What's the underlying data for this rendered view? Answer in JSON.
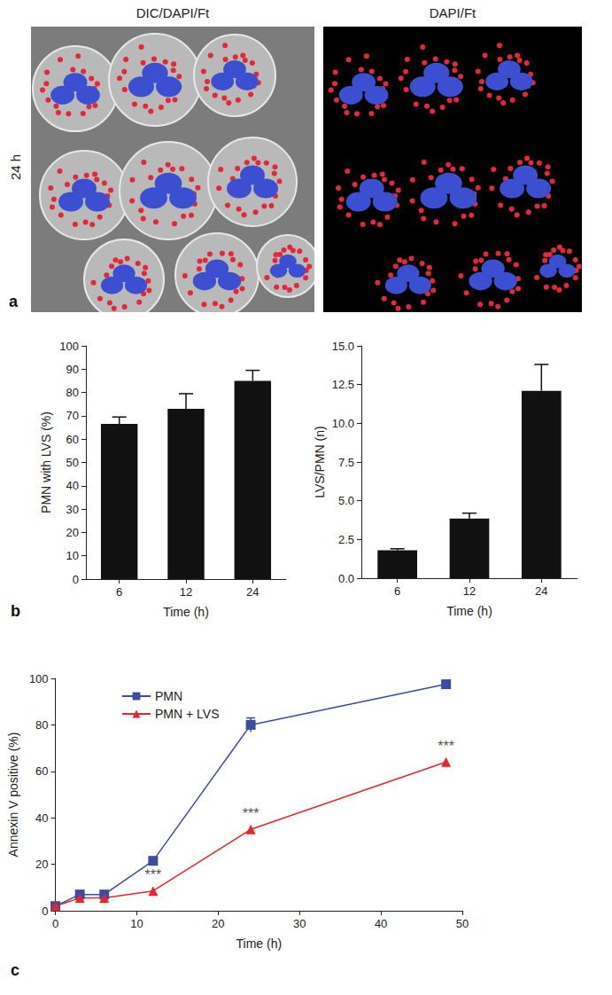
{
  "image_panel": {
    "annotations": [
      "a"
    ],
    "row_label": "24 h",
    "panels": [
      {
        "title": "DIC/DAPI/Ft"
      },
      {
        "title": "DAPI/Ft"
      }
    ]
  },
  "chart_data": [
    {
      "type": "bar",
      "annotations": [
        "b"
      ],
      "categories": [
        "6",
        "12",
        "24"
      ],
      "values": [
        66.5,
        73,
        85
      ],
      "errors": [
        3,
        6.5,
        4.5
      ],
      "color": "#111111",
      "xlabel": "Time (h)",
      "ylabel": "PMN with LVS (%)",
      "ylim": [
        0,
        100
      ],
      "yticks": [
        0,
        10,
        20,
        30,
        40,
        50,
        60,
        70,
        80,
        90,
        100
      ],
      "grid": false
    },
    {
      "type": "bar",
      "categories": [
        "6",
        "12",
        "24"
      ],
      "values": [
        1.8,
        3.85,
        12.1
      ],
      "errors": [
        0.1,
        0.35,
        1.7
      ],
      "color": "#111111",
      "xlabel": "Time (h)",
      "ylabel": "LVS/PMN (n)",
      "ylim": [
        0,
        15
      ],
      "yticks": [
        {
          "value": 0,
          "label": "0.0"
        },
        {
          "value": 2.5,
          "label": "2.5"
        },
        {
          "value": 5,
          "label": "5.0"
        },
        {
          "value": 7.5,
          "label": "7.5"
        },
        {
          "value": 10,
          "label": "10.0"
        },
        {
          "value": 12.5,
          "label": "12.5"
        },
        {
          "value": 15,
          "label": "15.0"
        }
      ],
      "grid": false
    },
    {
      "type": "line",
      "annotations": [
        "c"
      ],
      "x": [
        0,
        3,
        6,
        12,
        24,
        48
      ],
      "series": [
        {
          "name": "PMN",
          "color": "#3a4da2",
          "marker": "square",
          "values": [
            2,
            7,
            7,
            21.5,
            80,
            97.5
          ],
          "errors": [
            null,
            null,
            null,
            null,
            3,
            null
          ]
        },
        {
          "name": "PMN + LVS",
          "color": "#e8262a",
          "marker": "triangle",
          "values": [
            2,
            5.5,
            5.5,
            8.5,
            35,
            64
          ],
          "significance": [
            null,
            null,
            null,
            "***",
            "***",
            "***"
          ]
        }
      ],
      "xlabel": "Time (h)",
      "ylabel": "Annexin V positive (%)",
      "xlim": [
        0,
        50
      ],
      "xticks": [
        0,
        10,
        20,
        30,
        40,
        50
      ],
      "ylim": [
        0,
        100
      ],
      "yticks": [
        0,
        20,
        40,
        60,
        80,
        100
      ],
      "legend": "upper left",
      "grid": false
    }
  ]
}
